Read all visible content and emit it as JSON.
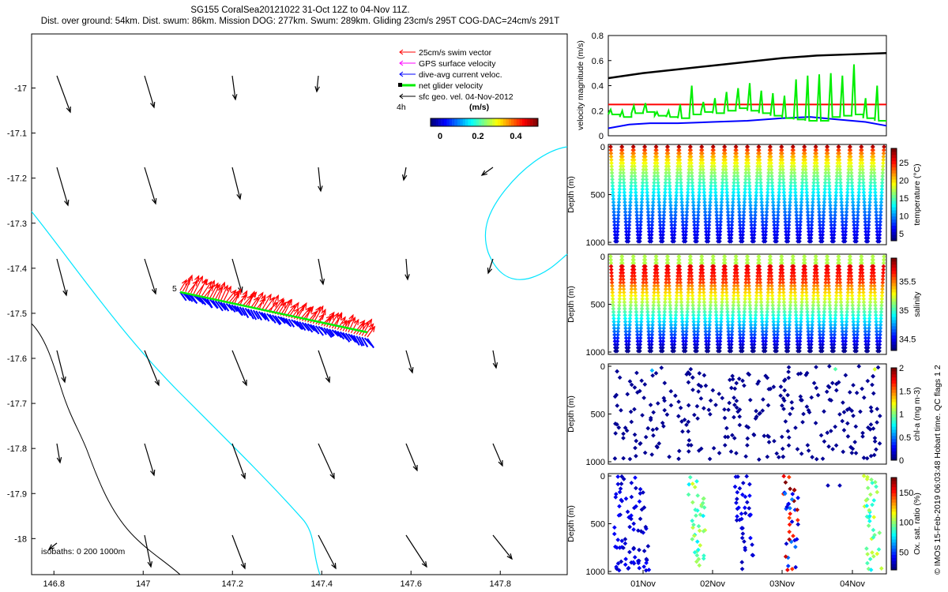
{
  "header": {
    "line1": "SG155 CoralSea20121022 31-Oct 12Z to 04-Nov 11Z.",
    "line2": "Dist. over ground: 54km. Dist. swum: 86km. Mission DOG: 277km. Swum: 289km. Gliding 23cm/s 295T COG-DAC=24cm/s 291T"
  },
  "colors": {
    "swim": "#ff0000",
    "gps": "#ff00ff",
    "dac": "#0000ff",
    "net": "#00ee00",
    "sfc": "#000000",
    "isobath_shallow": "#00e5ff",
    "isobath_deep": "#000000"
  },
  "map": {
    "legend": {
      "swim": "25cm/s swim vector",
      "gps": "GPS surface velocity",
      "dac": "dive-avg current veloc.",
      "net": "net glider velocity",
      "sfc": "sfc geo. vel. 04-Nov-2012",
      "interval": "4h",
      "unit": "(m/s)",
      "colorbar_ticks": [
        "0",
        "0.2",
        "0.4"
      ]
    },
    "track_label": "5",
    "isobaths_label": "isobaths: 0   200  1000m",
    "xticks": [
      146.8,
      147,
      147.2,
      147.4,
      147.6,
      147.8
    ],
    "yticks": [
      -17,
      -17.1,
      -17.2,
      -17.3,
      -17.4,
      -17.5,
      -17.6,
      -17.7,
      -17.8,
      -17.9,
      -18
    ],
    "xlim": [
      146.75,
      147.95
    ],
    "ylim": [
      -18.08,
      -16.88
    ]
  },
  "side": {
    "credit": "© IMOS 15-Feb-2019 06:03:48 Hobart time. QC flags 1  2",
    "time_ticks": [
      "01Nov",
      "02Nov",
      "03Nov",
      "04Nov"
    ]
  },
  "chart_data": [
    {
      "type": "quiver",
      "name": "map",
      "xlabel": "",
      "ylabel": "",
      "xlim": [
        146.75,
        147.95
      ],
      "ylim": [
        -18.08,
        -16.88
      ],
      "glider_track": {
        "start": [
          147.08,
          -17.46
        ],
        "end": [
          147.5,
          -17.56
        ]
      },
      "sfc_vectors_grid_x": [
        146.8,
        147.0,
        147.2,
        147.4,
        147.6,
        147.8
      ],
      "sfc_vectors_grid_y": [
        -17.0,
        -17.2,
        -17.4,
        -17.6,
        -17.8,
        -18.0
      ]
    },
    {
      "type": "line",
      "name": "velocity",
      "ylabel": "velocity magnitude (m/s)",
      "ylim": [
        0,
        0.8
      ],
      "yticks": [
        "0",
        "0.2",
        "0.4",
        "0.6",
        "0.8"
      ],
      "x_range_days": [
        0,
        4.0
      ],
      "series": [
        {
          "color": "#000000",
          "x": [
            0,
            0.5,
            1,
            1.5,
            2,
            2.5,
            3,
            3.5,
            4
          ],
          "values": [
            0.46,
            0.5,
            0.53,
            0.56,
            0.59,
            0.62,
            0.64,
            0.65,
            0.66
          ]
        },
        {
          "color": "#ff0000",
          "x": [
            0,
            4
          ],
          "values": [
            0.25,
            0.25
          ]
        },
        {
          "color": "#0000ff",
          "x": [
            0,
            0.3,
            0.6,
            1,
            1.5,
            2,
            2.5,
            2.9,
            3.3,
            3.7,
            4
          ],
          "values": [
            0.06,
            0.09,
            0.1,
            0.1,
            0.11,
            0.12,
            0.14,
            0.15,
            0.13,
            0.11,
            0.08
          ]
        },
        {
          "color": "#00ee00",
          "base": [
            0.17,
            0.15,
            0.18,
            0.19,
            0.16,
            0.15,
            0.14,
            0.17,
            0.19,
            0.18,
            0.2,
            0.22,
            0.2,
            0.18,
            0.16,
            0.14,
            0.13,
            0.12,
            0.12,
            0.15,
            0.16,
            0.17,
            0.14,
            0.12
          ],
          "peaks": [
            0.21,
            0.2,
            0.24,
            0.26,
            0.19,
            0.2,
            0.25,
            0.4,
            0.27,
            0.3,
            0.35,
            0.38,
            0.42,
            0.36,
            0.34,
            0.32,
            0.45,
            0.48,
            0.49,
            0.5,
            0.48,
            0.57,
            0.3,
            0.4
          ]
        }
      ]
    },
    {
      "type": "scatter",
      "name": "temperature",
      "ylabel": "Depth (m)",
      "colorbar_label": "temperature (°C)",
      "colorbar_ticks": [
        "5",
        "10",
        "15",
        "20",
        "25"
      ],
      "clim": [
        3,
        29
      ],
      "yticks": [
        "0",
        "500",
        "1000"
      ],
      "ylim": [
        1000,
        0
      ],
      "profiles": 24
    },
    {
      "type": "scatter",
      "name": "salinity",
      "ylabel": "Depth (m)",
      "colorbar_label": "salinity",
      "colorbar_ticks": [
        "34.5",
        "35",
        "35.5"
      ],
      "clim": [
        34.3,
        35.9
      ],
      "yticks": [
        "0",
        "500",
        "1000"
      ],
      "ylim": [
        1000,
        0
      ],
      "profiles": 24
    },
    {
      "type": "scatter",
      "name": "chla",
      "ylabel": "Depth (m)",
      "colorbar_label": "chl-a (mg m-3)",
      "colorbar_ticks": [
        "0",
        "0.5",
        "1",
        "1.5",
        "2"
      ],
      "clim": [
        0,
        2
      ],
      "yticks": [
        "0",
        "500",
        "1000"
      ],
      "ylim": [
        1000,
        0
      ]
    },
    {
      "type": "scatter",
      "name": "oxygen",
      "ylabel": "Depth (m)",
      "colorbar_label": "Ox. sat. ratio (%)",
      "colorbar_ticks": [
        "50",
        "100",
        "150"
      ],
      "clim": [
        20,
        175
      ],
      "yticks": [
        "0",
        "500",
        "1000"
      ],
      "ylim": [
        1000,
        0
      ],
      "xlabel_ticks": [
        "01Nov",
        "02Nov",
        "03Nov",
        "04Nov"
      ]
    }
  ]
}
